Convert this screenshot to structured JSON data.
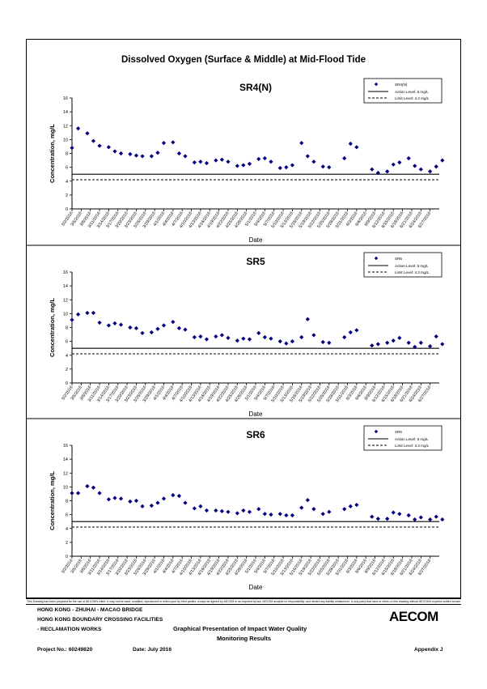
{
  "page": {
    "title": "Dissolved Oxygen (Surface & Middle) at Mid-Flood Tide",
    "disclaimer": "This Drawing has been prepared for the use of AECOM's client. It may not be used, modified, reproduced or relied upon by third parties, except as agreed by AECOM or as required by law. AECOM accepts no responsibility, and denies any liability whatsoever, to any party that uses or relies on this drawing without AECOM's express written consent."
  },
  "footer": {
    "line1": "HONG KONG - ZHUHAI - MACAO BRIDGE",
    "line2": "HONG KONG BOUNDARY CROSSING FACILITIES",
    "line3": "- RECLAMATION WORKS",
    "heading1": "Graphical Presentation of Impact Water Quality",
    "heading2": "Monitoring Results",
    "project": "Project No.: 60249820",
    "date": "Date: July 2016",
    "appendix": "Appendix J",
    "logo": "AECOM"
  },
  "colors": {
    "marker": "#000080",
    "line": "#000000"
  },
  "chart_data": [
    {
      "type": "scatter",
      "title": "SR4(N)",
      "xlabel": "Date",
      "ylabel": "Concentration, mg/L",
      "ylim": [
        0,
        16
      ],
      "yticks": [
        0,
        2,
        4,
        6,
        8,
        10,
        12,
        14,
        16
      ],
      "xticks": [
        "3/2/2016",
        "3/5/2016",
        "3/8/2016",
        "3/11/2016",
        "3/14/2016",
        "3/17/2016",
        "3/20/2016",
        "3/23/2016",
        "3/26/2016",
        "3/29/2016",
        "4/1/2016",
        "4/4/2016",
        "4/7/2016",
        "4/10/2016",
        "4/13/2016",
        "4/16/2016",
        "4/19/2016",
        "4/22/2016",
        "4/25/2016",
        "4/28/2016",
        "5/1/2016",
        "5/4/2016",
        "5/7/2016",
        "5/10/2016",
        "5/13/2016",
        "5/16/2016",
        "5/19/2016",
        "5/22/2016",
        "5/25/2016",
        "5/28/2016",
        "5/31/2016",
        "6/3/2016",
        "6/6/2016",
        "6/9/2016",
        "6/12/2016",
        "6/15/2016",
        "6/18/2016",
        "6/21/2016",
        "6/24/2016",
        "6/27/2016"
      ],
      "x_range": [
        "3/2/2016",
        "6/30/2016"
      ],
      "grid": false,
      "legend_position": "top-right",
      "legend": {
        "series": "SR4(N)",
        "action": "Action Level: 5 mg/L",
        "limit": "Limit Level: 4.2 mg/L"
      },
      "action_level": 5,
      "limit_level": 4.2,
      "series": [
        {
          "name": "SR4(N)",
          "points": [
            [
              "3/2/2016",
              8.8
            ],
            [
              "3/4/2016",
              11.6
            ],
            [
              "3/7/2016",
              10.9
            ],
            [
              "3/9/2016",
              9.8
            ],
            [
              "3/11/2016",
              9.1
            ],
            [
              "3/14/2016",
              8.9
            ],
            [
              "3/16/2016",
              8.3
            ],
            [
              "3/18/2016",
              8.0
            ],
            [
              "3/21/2016",
              7.9
            ],
            [
              "3/23/2016",
              7.7
            ],
            [
              "3/25/2016",
              7.6
            ],
            [
              "3/28/2016",
              7.6
            ],
            [
              "3/30/2016",
              8.1
            ],
            [
              "4/1/2016",
              9.5
            ],
            [
              "4/4/2016",
              9.6
            ],
            [
              "4/6/2016",
              8.0
            ],
            [
              "4/8/2016",
              7.6
            ],
            [
              "4/11/2016",
              6.7
            ],
            [
              "4/13/2016",
              6.8
            ],
            [
              "4/15/2016",
              6.6
            ],
            [
              "4/18/2016",
              7.0
            ],
            [
              "4/20/2016",
              7.1
            ],
            [
              "4/22/2016",
              6.8
            ],
            [
              "4/25/2016",
              6.2
            ],
            [
              "4/27/2016",
              6.3
            ],
            [
              "4/29/2016",
              6.5
            ],
            [
              "5/2/2016",
              7.2
            ],
            [
              "5/4/2016",
              7.3
            ],
            [
              "5/6/2016",
              6.8
            ],
            [
              "5/9/2016",
              5.9
            ],
            [
              "5/11/2016",
              6.0
            ],
            [
              "5/13/2016",
              6.3
            ],
            [
              "5/16/2016",
              9.5
            ],
            [
              "5/18/2016",
              7.6
            ],
            [
              "5/20/2016",
              6.8
            ],
            [
              "5/23/2016",
              6.1
            ],
            [
              "5/25/2016",
              6.0
            ],
            [
              "5/30/2016",
              7.3
            ],
            [
              "6/1/2016",
              9.4
            ],
            [
              "6/3/2016",
              8.9
            ],
            [
              "6/8/2016",
              5.7
            ],
            [
              "6/10/2016",
              5.2
            ],
            [
              "6/13/2016",
              5.4
            ],
            [
              "6/15/2016",
              6.4
            ],
            [
              "6/17/2016",
              6.7
            ],
            [
              "6/20/2016",
              7.3
            ],
            [
              "6/22/2016",
              6.2
            ],
            [
              "6/24/2016",
              5.7
            ],
            [
              "6/27/2016",
              5.4
            ],
            [
              "6/29/2016",
              6.1
            ],
            [
              "7/1/2016",
              7.0
            ]
          ]
        }
      ]
    },
    {
      "type": "scatter",
      "title": "SR5",
      "xlabel": "Date",
      "ylabel": "Concentration, mg/L",
      "ylim": [
        0,
        16
      ],
      "yticks": [
        0,
        2,
        4,
        6,
        8,
        10,
        12,
        14,
        16
      ],
      "xticks": [
        "3/2/2016",
        "3/5/2016",
        "3/8/2016",
        "3/11/2016",
        "3/14/2016",
        "3/17/2016",
        "3/20/2016",
        "3/23/2016",
        "3/26/2016",
        "3/29/2016",
        "4/1/2016",
        "4/4/2016",
        "4/7/2016",
        "4/10/2016",
        "4/13/2016",
        "4/16/2016",
        "4/19/2016",
        "4/22/2016",
        "4/25/2016",
        "4/28/2016",
        "5/1/2016",
        "5/4/2016",
        "5/7/2016",
        "5/10/2016",
        "5/13/2016",
        "5/16/2016",
        "5/19/2016",
        "5/22/2016",
        "5/25/2016",
        "5/28/2016",
        "5/31/2016",
        "6/3/2016",
        "6/6/2016",
        "6/9/2016",
        "6/12/2016",
        "6/15/2016",
        "6/18/2016",
        "6/21/2016",
        "6/24/2016",
        "6/27/2016"
      ],
      "x_range": [
        "3/2/2016",
        "6/30/2016"
      ],
      "grid": false,
      "legend_position": "top-right",
      "legend": {
        "series": "SR5",
        "action": "Action Level: 5 mg/L",
        "limit": "Limit Level: 4.2 mg/L"
      },
      "action_level": 5,
      "limit_level": 4.2,
      "series": [
        {
          "name": "SR5",
          "points": [
            [
              "3/2/2016",
              9.1
            ],
            [
              "3/4/2016",
              9.9
            ],
            [
              "3/7/2016",
              10.1
            ],
            [
              "3/9/2016",
              10.1
            ],
            [
              "3/11/2016",
              8.7
            ],
            [
              "3/14/2016",
              8.3
            ],
            [
              "3/16/2016",
              8.6
            ],
            [
              "3/18/2016",
              8.4
            ],
            [
              "3/21/2016",
              8.0
            ],
            [
              "3/23/2016",
              7.9
            ],
            [
              "3/25/2016",
              7.2
            ],
            [
              "3/28/2016",
              7.3
            ],
            [
              "3/30/2016",
              7.8
            ],
            [
              "4/1/2016",
              8.3
            ],
            [
              "4/4/2016",
              8.8
            ],
            [
              "4/6/2016",
              7.9
            ],
            [
              "4/8/2016",
              7.7
            ],
            [
              "4/11/2016",
              6.6
            ],
            [
              "4/13/2016",
              6.7
            ],
            [
              "4/15/2016",
              6.3
            ],
            [
              "4/18/2016",
              6.7
            ],
            [
              "4/20/2016",
              6.9
            ],
            [
              "4/22/2016",
              6.5
            ],
            [
              "4/25/2016",
              6.1
            ],
            [
              "4/27/2016",
              6.4
            ],
            [
              "4/29/2016",
              6.3
            ],
            [
              "5/2/2016",
              7.2
            ],
            [
              "5/4/2016",
              6.6
            ],
            [
              "5/6/2016",
              6.4
            ],
            [
              "5/9/2016",
              6.0
            ],
            [
              "5/11/2016",
              5.7
            ],
            [
              "5/13/2016",
              6.0
            ],
            [
              "5/16/2016",
              6.6
            ],
            [
              "5/18/2016",
              9.2
            ],
            [
              "5/20/2016",
              6.9
            ],
            [
              "5/23/2016",
              5.9
            ],
            [
              "5/25/2016",
              5.8
            ],
            [
              "5/30/2016",
              6.6
            ],
            [
              "6/1/2016",
              7.3
            ],
            [
              "6/3/2016",
              7.6
            ],
            [
              "6/8/2016",
              5.4
            ],
            [
              "6/10/2016",
              5.6
            ],
            [
              "6/13/2016",
              5.8
            ],
            [
              "6/15/2016",
              6.1
            ],
            [
              "6/17/2016",
              6.5
            ],
            [
              "6/20/2016",
              5.8
            ],
            [
              "6/22/2016",
              5.2
            ],
            [
              "6/24/2016",
              5.8
            ],
            [
              "6/27/2016",
              5.3
            ],
            [
              "6/29/2016",
              6.7
            ],
            [
              "7/1/2016",
              5.6
            ]
          ]
        }
      ]
    },
    {
      "type": "scatter",
      "title": "SR6",
      "xlabel": "Date",
      "ylabel": "Concentration, mg/L",
      "ylim": [
        0,
        16
      ],
      "yticks": [
        0,
        2,
        4,
        6,
        8,
        10,
        12,
        14,
        16
      ],
      "xticks": [
        "3/2/2016",
        "3/5/2016",
        "3/8/2016",
        "3/11/2016",
        "3/14/2016",
        "3/17/2016",
        "3/20/2016",
        "3/23/2016",
        "3/26/2016",
        "3/29/2016",
        "4/1/2016",
        "4/4/2016",
        "4/7/2016",
        "4/10/2016",
        "4/13/2016",
        "4/16/2016",
        "4/19/2016",
        "4/22/2016",
        "4/25/2016",
        "4/28/2016",
        "5/1/2016",
        "5/4/2016",
        "5/7/2016",
        "5/10/2016",
        "5/13/2016",
        "5/16/2016",
        "5/19/2016",
        "5/22/2016",
        "5/25/2016",
        "5/28/2016",
        "5/31/2016",
        "6/3/2016",
        "6/6/2016",
        "6/9/2016",
        "6/12/2016",
        "6/15/2016",
        "6/18/2016",
        "6/21/2016",
        "6/24/2016",
        "6/27/2016"
      ],
      "x_range": [
        "3/2/2016",
        "6/30/2016"
      ],
      "grid": false,
      "legend_position": "top-right",
      "legend": {
        "series": "SR6",
        "action": "Action Level: 5 mg/L",
        "limit": "Limit Level: 4.2 mg/L"
      },
      "action_level": 5,
      "limit_level": 4.2,
      "series": [
        {
          "name": "SR6",
          "points": [
            [
              "3/2/2016",
              9.1
            ],
            [
              "3/4/2016",
              9.1
            ],
            [
              "3/7/2016",
              10.1
            ],
            [
              "3/9/2016",
              9.9
            ],
            [
              "3/11/2016",
              9.1
            ],
            [
              "3/14/2016",
              8.2
            ],
            [
              "3/16/2016",
              8.4
            ],
            [
              "3/18/2016",
              8.3
            ],
            [
              "3/21/2016",
              7.9
            ],
            [
              "3/23/2016",
              8.0
            ],
            [
              "3/25/2016",
              7.2
            ],
            [
              "3/28/2016",
              7.3
            ],
            [
              "3/30/2016",
              7.7
            ],
            [
              "4/1/2016",
              8.3
            ],
            [
              "4/4/2016",
              8.8
            ],
            [
              "4/6/2016",
              8.7
            ],
            [
              "4/8/2016",
              7.7
            ],
            [
              "4/11/2016",
              6.9
            ],
            [
              "4/13/2016",
              7.2
            ],
            [
              "4/15/2016",
              6.6
            ],
            [
              "4/18/2016",
              6.6
            ],
            [
              "4/20/2016",
              6.5
            ],
            [
              "4/22/2016",
              6.4
            ],
            [
              "4/25/2016",
              6.2
            ],
            [
              "4/27/2016",
              6.6
            ],
            [
              "4/29/2016",
              6.4
            ],
            [
              "5/2/2016",
              6.8
            ],
            [
              "5/4/2016",
              6.1
            ],
            [
              "5/6/2016",
              6.0
            ],
            [
              "5/9/2016",
              6.1
            ],
            [
              "5/11/2016",
              5.9
            ],
            [
              "5/13/2016",
              5.9
            ],
            [
              "5/16/2016",
              7.0
            ],
            [
              "5/18/2016",
              8.1
            ],
            [
              "5/20/2016",
              6.8
            ],
            [
              "5/23/2016",
              6.1
            ],
            [
              "5/25/2016",
              6.4
            ],
            [
              "5/30/2016",
              6.8
            ],
            [
              "6/1/2016",
              7.2
            ],
            [
              "6/3/2016",
              7.4
            ],
            [
              "6/8/2016",
              5.7
            ],
            [
              "6/10/2016",
              5.4
            ],
            [
              "6/13/2016",
              5.4
            ],
            [
              "6/15/2016",
              6.3
            ],
            [
              "6/17/2016",
              6.1
            ],
            [
              "6/20/2016",
              5.9
            ],
            [
              "6/22/2016",
              5.3
            ],
            [
              "6/24/2016",
              5.6
            ],
            [
              "6/27/2016",
              5.3
            ],
            [
              "6/29/2016",
              5.7
            ],
            [
              "7/1/2016",
              5.3
            ]
          ]
        }
      ]
    }
  ]
}
